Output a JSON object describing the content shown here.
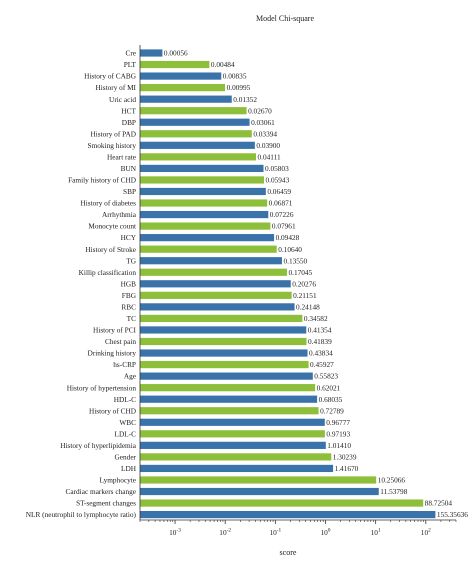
{
  "chart_data": {
    "type": "bar",
    "orientation": "horizontal",
    "title": "Model Chi-square",
    "xlabel": "score",
    "ylabel": "",
    "x_scale": "log",
    "xlim": [
      0.0002,
      400
    ],
    "x_ticks": [
      0.001,
      0.01,
      0.1,
      1,
      10,
      100
    ],
    "x_tick_labels": [
      {
        "base": "10",
        "exp": "-3"
      },
      {
        "base": "10",
        "exp": "-2"
      },
      {
        "base": "10",
        "exp": "-1"
      },
      {
        "base": "10",
        "exp": "0"
      },
      {
        "base": "10",
        "exp": "1"
      },
      {
        "base": "10",
        "exp": "2"
      }
    ],
    "grid": false,
    "legend": "none",
    "colors": [
      "#3a73aa",
      "#8dbf3a"
    ],
    "categories": [
      "Cre",
      "PLT",
      "History of CABG",
      "History of MI",
      "Uric acid",
      "HCT",
      "DBP",
      "History of PAD",
      "Smoking history",
      "Heart rate",
      "BUN",
      "Family history of CHD",
      "SBP",
      "History of diabetes",
      "Arrhythmia",
      "Monocyte count",
      "HCY",
      "History of Stroke",
      "TG",
      "Killip classification",
      "HGB",
      "FBG",
      "RBC",
      "TC",
      "History of PCI",
      "Chest pain",
      "Drinking history",
      "hs-CRP",
      "Age",
      "History of hypertension",
      "HDL-C",
      "History of CHD",
      "WBC",
      "LDL-C",
      "History of hyperlipidemia",
      "Gender",
      "LDH",
      "Lymphocyte",
      "Cardiac markers change",
      "ST-segment changes",
      "NLR (neutrophil to lymphocyte ratio)"
    ],
    "values": [
      0.00056,
      0.00484,
      0.00835,
      0.00995,
      0.01352,
      0.0267,
      0.03061,
      0.03394,
      0.039,
      0.04111,
      0.05803,
      0.05943,
      0.06459,
      0.06871,
      0.07226,
      0.07961,
      0.09428,
      0.1064,
      0.1355,
      0.17045,
      0.20276,
      0.21151,
      0.24148,
      0.34582,
      0.41354,
      0.41839,
      0.43834,
      0.45927,
      0.55823,
      0.62021,
      0.68035,
      0.72789,
      0.96777,
      0.97193,
      1.0141,
      1.30239,
      1.4167,
      10.25066,
      11.53798,
      88.72504,
      155.35636
    ],
    "value_labels": [
      "0.00056",
      "0.00484",
      "0.00835",
      "0.00995",
      "0.01352",
      "0.02670",
      "0.03061",
      "0.03394",
      "0.03900",
      "0.04111",
      "0.05803",
      "0.05943",
      "0.06459",
      "0.06871",
      "0.07226",
      "0.07961",
      "0.09428",
      "0.10640",
      "0.13550",
      "0.17045",
      "0.20276",
      "0.21151",
      "0.24148",
      "0.34582",
      "0.41354",
      "0.41839",
      "0.43834",
      "0.45927",
      "0.55823",
      "0.62021",
      "0.68035",
      "0.72789",
      "0.96777",
      "0.97193",
      "1.01410",
      "1.30239",
      "1.41670",
      "10.25066",
      "11.53798",
      "88.72504",
      "155.35636"
    ]
  }
}
